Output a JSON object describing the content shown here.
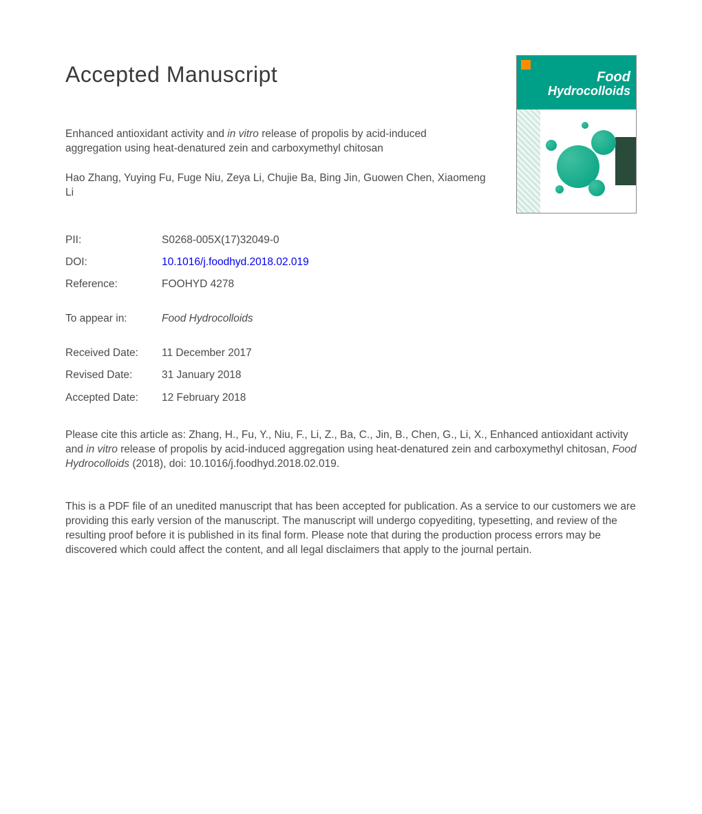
{
  "heading": "Accepted Manuscript",
  "cover": {
    "journal_word1": "Food",
    "journal_word2": "Hydrocolloids",
    "brand_color": "#00a088",
    "bubble_color_light": "#40c0a0",
    "bubble_color_dark": "#00a080"
  },
  "title_part1": "Enhanced antioxidant activity and ",
  "title_italic": "in vitro",
  "title_part2": " release of propolis by acid-induced aggregation using heat-denatured zein and carboxymethyl chitosan",
  "authors": "Hao Zhang, Yuying Fu, Fuge Niu, Zeya Li, Chujie Ba, Bing Jin, Guowen Chen, Xiaomeng Li",
  "meta": {
    "pii_label": "PII:",
    "pii_value": "S0268-005X(17)32049-0",
    "doi_label": "DOI:",
    "doi_value": "10.1016/j.foodhyd.2018.02.019",
    "reference_label": "Reference:",
    "reference_value": "FOOHYD 4278",
    "appear_label": "To appear in:",
    "appear_value": "Food Hydrocolloids",
    "received_label": "Received Date:",
    "received_value": "11 December 2017",
    "revised_label": "Revised Date:",
    "revised_value": "31 January 2018",
    "accepted_label": "Accepted Date:",
    "accepted_value": "12 February 2018"
  },
  "citation_part1": "Please cite this article as: Zhang, H., Fu, Y., Niu, F., Li, Z., Ba, C., Jin, B., Chen, G., Li, X., Enhanced antioxidant activity and ",
  "citation_italic1": "in vitro",
  "citation_part2": " release of propolis by acid-induced aggregation using heat-denatured zein and carboxymethyl chitosan, ",
  "citation_italic2": "Food Hydrocolloids",
  "citation_part3": " (2018), doi: 10.1016/j.foodhyd.2018.02.019.",
  "notice": "This is a PDF file of an unedited manuscript that has been accepted for publication. As a service to our customers we are providing this early version of the manuscript. The manuscript will undergo copyediting, typesetting, and review of the resulting proof before it is published in its final form. Please note that during the production process errors may be discovered which could affect the content, and all legal disclaimers that apply to the journal pertain."
}
